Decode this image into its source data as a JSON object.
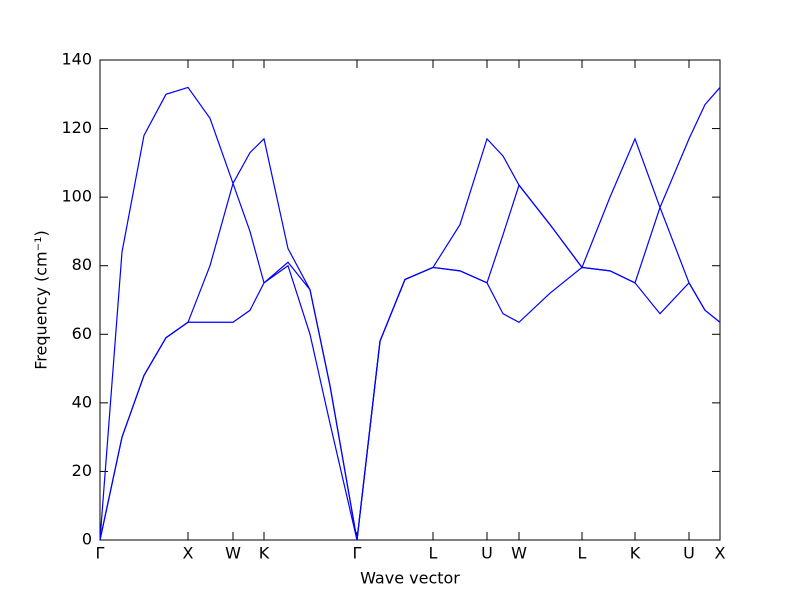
{
  "chart_data": {
    "type": "line",
    "xlabel": "Wave vector",
    "ylabel": "Frequency (cm⁻¹)",
    "x": [
      0,
      0.22,
      0.44,
      0.66,
      0.88,
      1.1,
      1.33,
      1.5,
      1.64,
      1.88,
      2.1,
      2.3,
      2.57,
      2.8,
      3.05,
      3.33,
      3.6,
      3.87,
      4.03,
      4.19,
      4.5,
      4.82,
      5.1,
      5.35,
      5.6,
      5.89,
      6.05,
      6.2
    ],
    "series": [
      {
        "color": "#0000ff",
        "values": [
          0,
          30,
          48,
          59,
          63.5,
          63.5,
          63.5,
          67,
          75,
          80,
          60,
          34,
          0,
          58,
          76,
          79.5,
          78.5,
          75,
          66,
          63.5,
          72,
          79.5,
          78.5,
          75,
          66,
          75,
          67,
          63.5
        ]
      },
      {
        "color": "#0000ff",
        "values": [
          0,
          30,
          48,
          59,
          63.5,
          80,
          104,
          90,
          75,
          81,
          73,
          45,
          0,
          58,
          76,
          79.5,
          78.5,
          75,
          89,
          103.5,
          92,
          79.5,
          78.5,
          75,
          97,
          75,
          67,
          63.5
        ]
      },
      {
        "color": "#0000ff",
        "values": [
          0,
          84,
          118,
          130,
          132,
          123,
          104,
          113,
          117,
          85,
          73,
          45,
          0,
          58,
          76,
          79.5,
          92,
          117,
          112,
          103.5,
          92,
          79.5,
          100,
          117,
          97,
          117,
          127,
          132
        ]
      }
    ],
    "xlim": [
      0,
      6.2
    ],
    "xticks": [
      {
        "value": 0,
        "label": "Γ"
      },
      {
        "value": 0.88,
        "label": "X"
      },
      {
        "value": 1.33,
        "label": "W"
      },
      {
        "value": 1.64,
        "label": "K"
      },
      {
        "value": 2.57,
        "label": "Γ"
      },
      {
        "value": 3.33,
        "label": "L"
      },
      {
        "value": 3.87,
        "label": "U"
      },
      {
        "value": 4.19,
        "label": "W"
      },
      {
        "value": 4.82,
        "label": "L"
      },
      {
        "value": 5.35,
        "label": "K"
      },
      {
        "value": 5.89,
        "label": "U"
      },
      {
        "value": 6.2,
        "label": "X"
      }
    ],
    "ylim": [
      0,
      140
    ],
    "yticks": [
      0,
      20,
      40,
      60,
      80,
      100,
      120,
      140
    ]
  }
}
